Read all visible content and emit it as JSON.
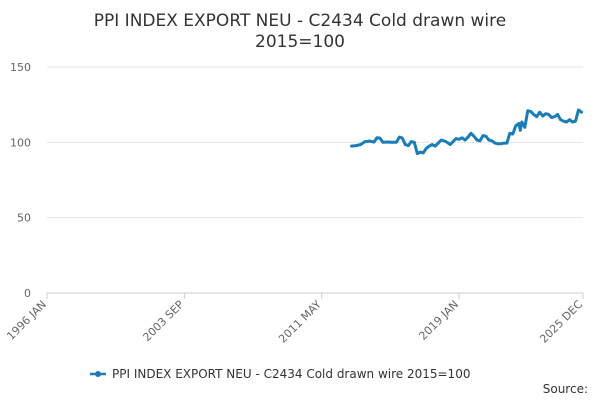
{
  "chart_data": {
    "type": "line",
    "title_lines": [
      "PPI INDEX EXPORT NEU - C2434 Cold drawn wire",
      "2015=100"
    ],
    "xlabel": "",
    "ylabel": "",
    "x_tick_labels": [
      "1996 JAN",
      "2003 SEP",
      "2011 MAY",
      "2019 JAN",
      "2025 DEC"
    ],
    "x_range": [
      "1996-01",
      "2025-12"
    ],
    "ylim": [
      0,
      150
    ],
    "y_ticks": [
      0,
      50,
      100,
      150
    ],
    "grid": "horizontal",
    "legend_position": "bottom",
    "source_label": "Source:",
    "series": [
      {
        "name": "PPI INDEX EXPORT NEU - C2434 Cold drawn wire 2015=100",
        "color": "#1a7db8",
        "points": [
          [
            "2013-01",
            97.5
          ],
          [
            "2013-04",
            97.8
          ],
          [
            "2013-07",
            98.5
          ],
          [
            "2013-10",
            100.5
          ],
          [
            "2014-01",
            100.8
          ],
          [
            "2014-04",
            100.2
          ],
          [
            "2014-06",
            103.0
          ],
          [
            "2014-08",
            102.8
          ],
          [
            "2014-10",
            100.0
          ],
          [
            "2015-01",
            100.2
          ],
          [
            "2015-04",
            100.0
          ],
          [
            "2015-07",
            100.1
          ],
          [
            "2015-09",
            103.5
          ],
          [
            "2015-11",
            102.8
          ],
          [
            "2016-01",
            98.5
          ],
          [
            "2016-03",
            97.8
          ],
          [
            "2016-05",
            100.5
          ],
          [
            "2016-07",
            100.0
          ],
          [
            "2016-09",
            92.5
          ],
          [
            "2016-11",
            93.5
          ],
          [
            "2017-01",
            93.0
          ],
          [
            "2017-03",
            96.0
          ],
          [
            "2017-05",
            97.5
          ],
          [
            "2017-07",
            98.5
          ],
          [
            "2017-09",
            97.5
          ],
          [
            "2017-11",
            99.5
          ],
          [
            "2018-01",
            101.5
          ],
          [
            "2018-03",
            101.0
          ],
          [
            "2018-05",
            100.0
          ],
          [
            "2018-07",
            98.5
          ],
          [
            "2018-09",
            100.5
          ],
          [
            "2018-11",
            102.5
          ],
          [
            "2019-01",
            102.0
          ],
          [
            "2019-03",
            103.0
          ],
          [
            "2019-05",
            101.5
          ],
          [
            "2019-07",
            103.5
          ],
          [
            "2019-09",
            106.0
          ],
          [
            "2019-11",
            104.0
          ],
          [
            "2020-01",
            101.5
          ],
          [
            "2020-03",
            101.0
          ],
          [
            "2020-05",
            104.5
          ],
          [
            "2020-07",
            104.0
          ],
          [
            "2020-09",
            101.5
          ],
          [
            "2020-11",
            101.0
          ],
          [
            "2021-01",
            99.5
          ],
          [
            "2021-03",
            99.0
          ],
          [
            "2021-05",
            99.0
          ],
          [
            "2021-07",
            99.5
          ],
          [
            "2021-09",
            99.5
          ],
          [
            "2021-11",
            106.0
          ],
          [
            "2022-01",
            105.5
          ],
          [
            "2022-03",
            111.0
          ],
          [
            "2022-05",
            112.5
          ],
          [
            "2022-06",
            108.0
          ],
          [
            "2022-07",
            113.5
          ],
          [
            "2022-09",
            110.0
          ],
          [
            "2022-11",
            121.0
          ],
          [
            "2023-01",
            120.5
          ],
          [
            "2023-03",
            118.5
          ],
          [
            "2023-05",
            117.0
          ],
          [
            "2023-07",
            120.0
          ],
          [
            "2023-09",
            117.5
          ],
          [
            "2023-11",
            119.0
          ],
          [
            "2024-01",
            118.5
          ],
          [
            "2024-03",
            116.5
          ],
          [
            "2024-05",
            117.0
          ],
          [
            "2024-07",
            118.5
          ],
          [
            "2024-09",
            115.0
          ],
          [
            "2024-11",
            114.0
          ],
          [
            "2025-01",
            113.5
          ],
          [
            "2025-03",
            115.0
          ],
          [
            "2025-05",
            113.5
          ],
          [
            "2025-07",
            114.0
          ],
          [
            "2025-09",
            121.5
          ],
          [
            "2025-11",
            120.0
          ]
        ]
      }
    ]
  }
}
